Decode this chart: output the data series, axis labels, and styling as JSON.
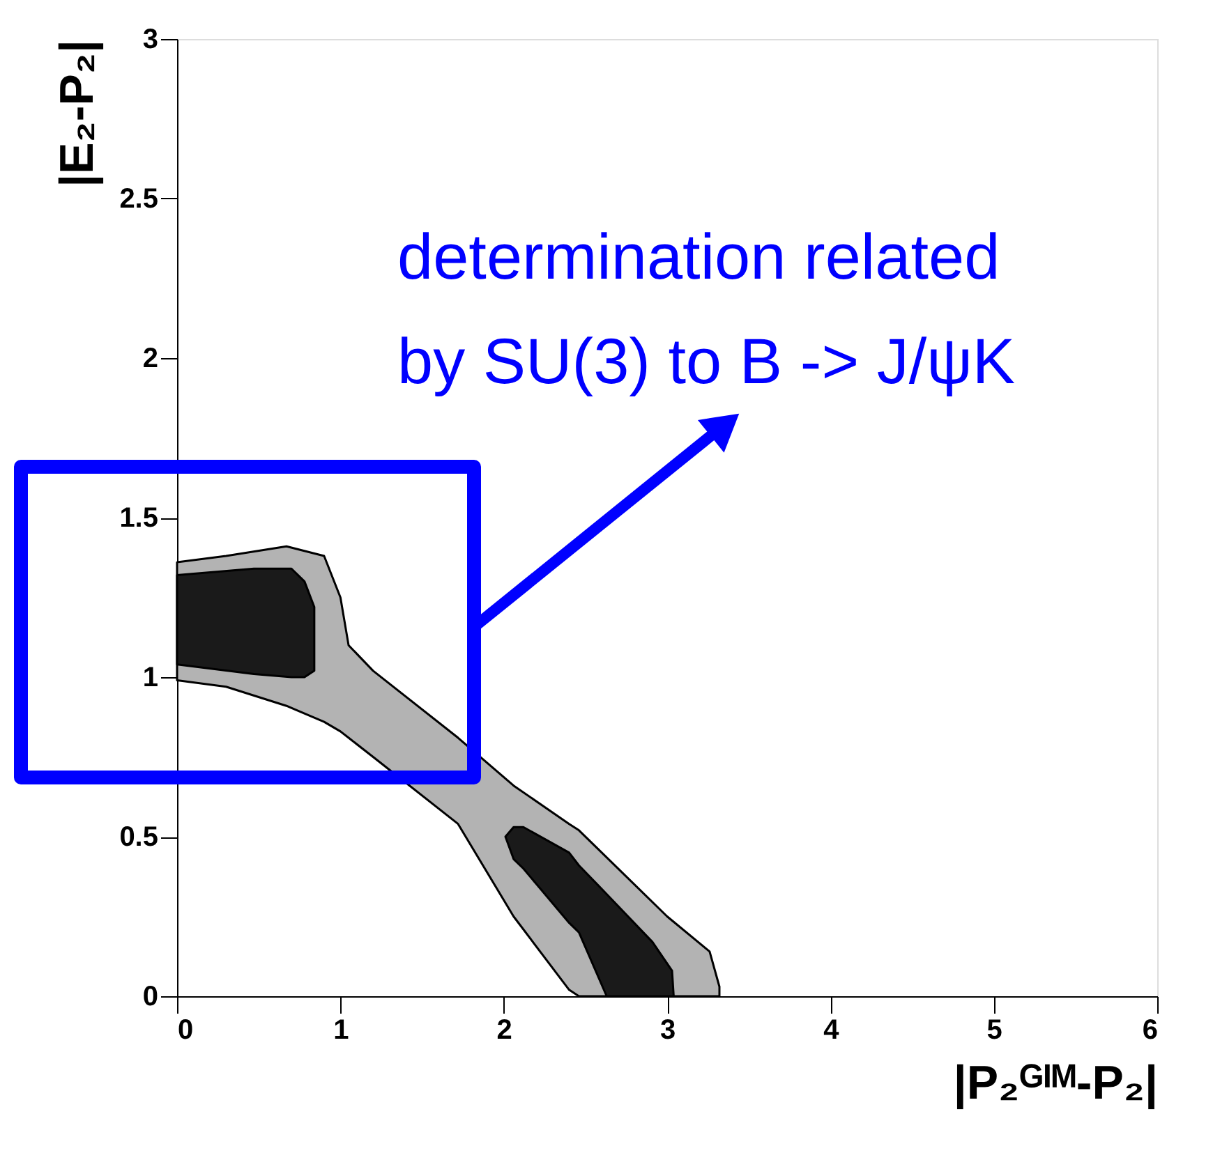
{
  "chart_data": {
    "type": "area",
    "xlabel": "|P₂ᴳᴵᴹ-P₂|",
    "ylabel": "|E₂-P₂|",
    "xlim": [
      0,
      6
    ],
    "ylim": [
      0,
      3
    ],
    "xticks": [
      0,
      1,
      2,
      3,
      4,
      5,
      6
    ],
    "yticks": [
      0,
      0.5,
      1,
      1.5,
      2,
      2.5,
      3
    ],
    "grid": false,
    "annotations": [
      "determination related\nby SU(3) to B -> J/ψK"
    ],
    "series": [
      {
        "type": "area",
        "color": "#b3b3b3",
        "x": [
          0,
          0.3,
          0.67,
          0.9,
          1.0,
          1.05,
          1.2,
          1.72,
          2.06,
          2.4,
          2.46,
          3.0,
          3.26,
          3.32
        ],
        "values": [
          null,
          null,
          null,
          null,
          null,
          null,
          null,
          null,
          null,
          null,
          null,
          null,
          null,
          null
        ],
        "upper": [
          1.36,
          1.38,
          1.41,
          1.38,
          1.25,
          1.1,
          1.02,
          0.81,
          0.66,
          0.54,
          0.52,
          0.25,
          0.14,
          0.03
        ],
        "lower": [
          0.99,
          0.97,
          0.91,
          0.86,
          0.83,
          0.81,
          0.75,
          0.54,
          0.25,
          0.02,
          0,
          0,
          0,
          0
        ]
      },
      {
        "type": "area",
        "color": "#1a1a1a",
        "x": [
          0,
          0.47,
          0.7,
          0.78,
          0.84
        ],
        "values": [
          null,
          null,
          null,
          null,
          null
        ],
        "upper": [
          1.32,
          1.34,
          1.34,
          1.3,
          1.22
        ],
        "lower": [
          1.04,
          1.01,
          1.0,
          1.0,
          1.02
        ]
      },
      {
        "type": "area",
        "color": "#1a1a1a",
        "x": [
          2.01,
          2.06,
          2.12,
          2.4,
          2.46,
          2.63,
          2.91,
          3.03,
          3.04
        ],
        "values": [
          null,
          null,
          null,
          null,
          null,
          null,
          null,
          null,
          null
        ],
        "upper": [
          0.5,
          0.53,
          0.53,
          0.45,
          0.41,
          0.32,
          0.17,
          0.08,
          0.0
        ],
        "lower": [
          0.5,
          0.43,
          0.4,
          0.23,
          0.2,
          0,
          0,
          0,
          0
        ]
      }
    ]
  }
}
